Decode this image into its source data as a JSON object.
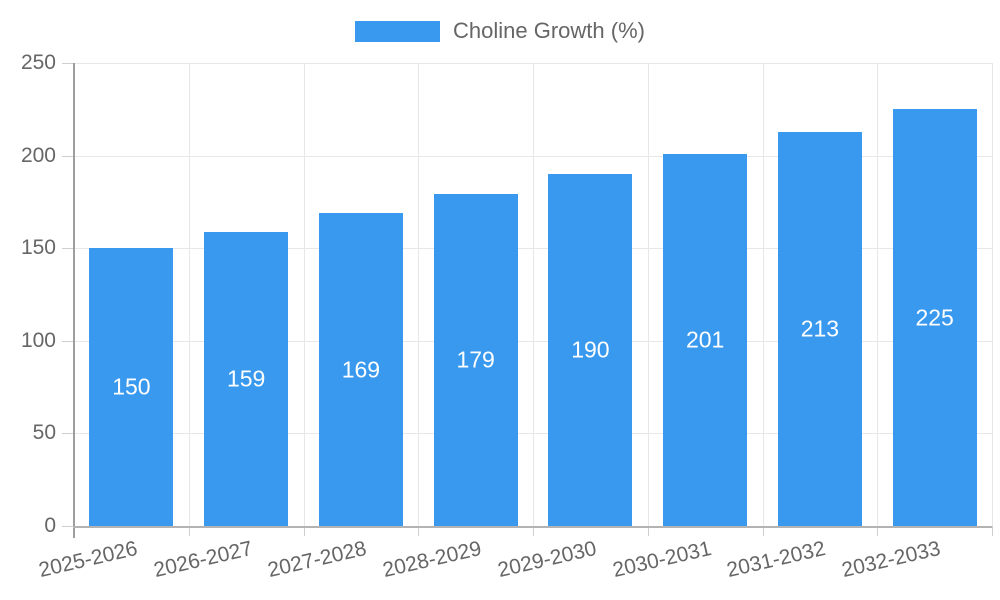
{
  "legend": {
    "label": "Choline Growth (%)"
  },
  "chart_data": {
    "type": "bar",
    "title": "",
    "categories": [
      "2025-2026",
      "2026-2027",
      "2027-2028",
      "2028-2029",
      "2029-2030",
      "2030-2031",
      "2031-2032",
      "2032-2033"
    ],
    "series": [
      {
        "name": "Choline Growth (%)",
        "values": [
          150,
          159,
          169,
          179,
          190,
          201,
          213,
          225
        ]
      }
    ],
    "xlabel": "",
    "ylabel": "",
    "ylim": [
      0,
      250
    ],
    "ytick_step": 50,
    "ytick_labels": [
      "0",
      "50",
      "100",
      "150",
      "200",
      "250"
    ],
    "grid": true,
    "legend_position": "top",
    "x_label_rotation_deg": -13,
    "value_labels_position": "inside-center",
    "colors": {
      "bar": "#3999ee",
      "value_label": "#ffffff",
      "axis_text": "#666666",
      "gridline": "#e7e7e7",
      "tick": "#cfcfcf",
      "axis_line": "#9e9e9e",
      "background": "#ffffff"
    }
  }
}
